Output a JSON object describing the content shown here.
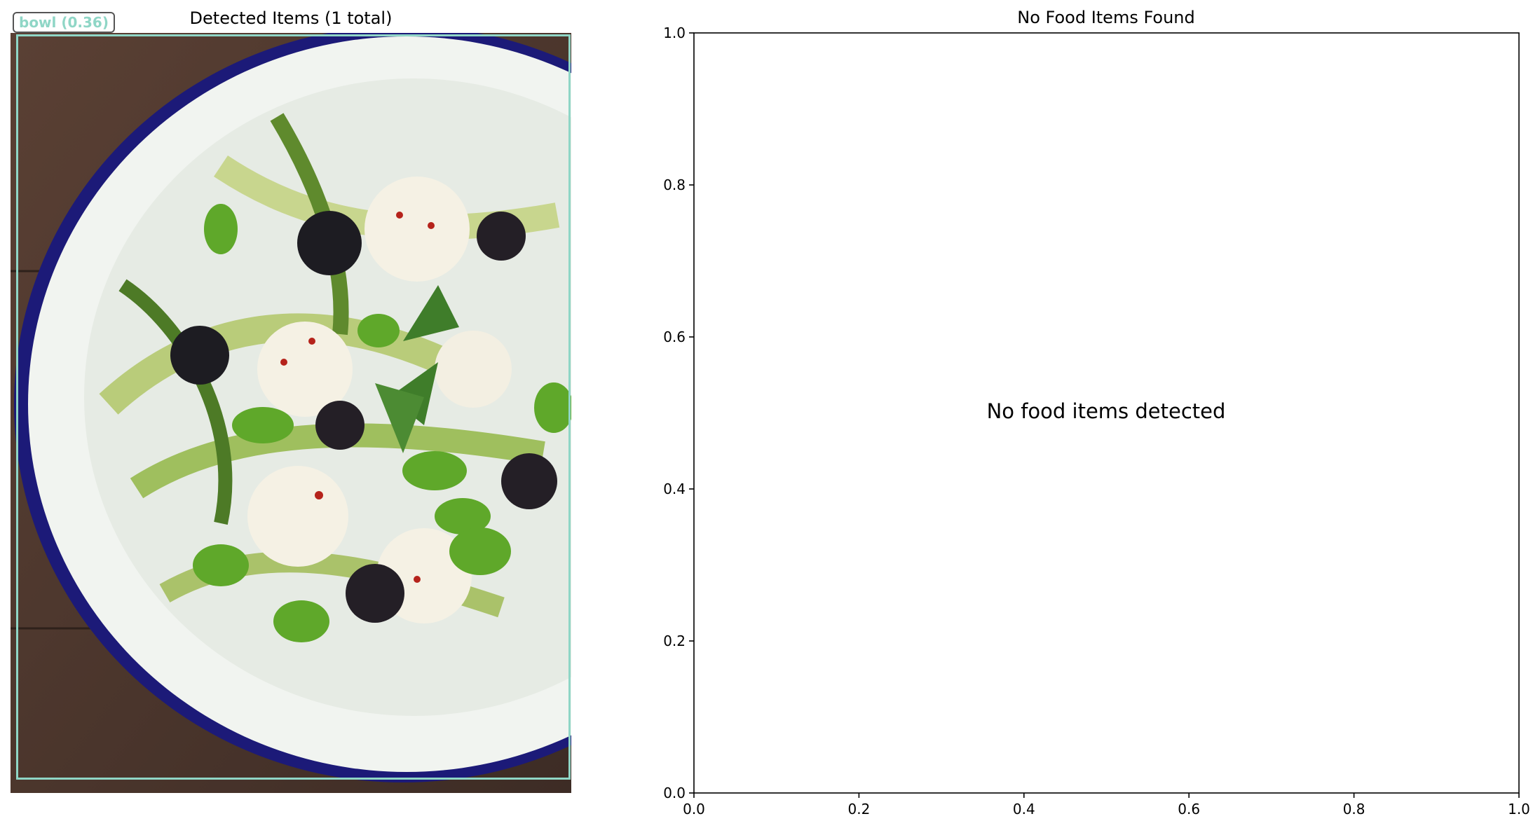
{
  "left_panel": {
    "title": "Detected Items (1 total)",
    "image_description_icon": "salad-bowl-photo",
    "detection": {
      "label": "bowl (0.36)",
      "box_color": "#8fd6c6"
    }
  },
  "chart_data": {
    "type": "scatter",
    "title": "No Food Items Found",
    "xlabel": "",
    "ylabel": "",
    "xlim": [
      0.0,
      1.0
    ],
    "ylim": [
      0.0,
      1.0
    ],
    "x_ticks": [
      "0.0",
      "0.2",
      "0.4",
      "0.6",
      "0.8",
      "1.0"
    ],
    "y_ticks": [
      "0.0",
      "0.2",
      "0.4",
      "0.6",
      "0.8",
      "1.0"
    ],
    "series": [],
    "grid": false,
    "annotation": "No food items detected"
  }
}
